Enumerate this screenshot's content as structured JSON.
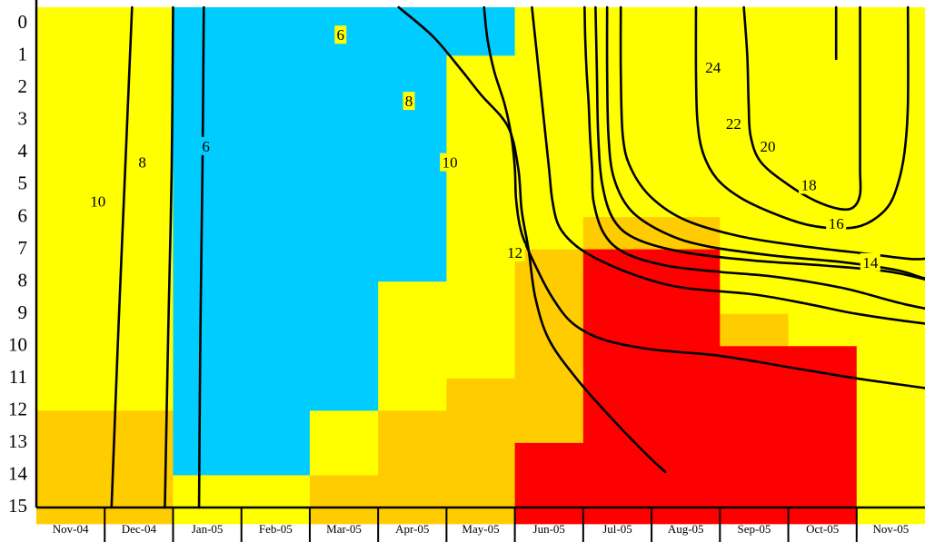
{
  "chart_data": {
    "type": "heatmap",
    "title": "",
    "xlabel": "",
    "ylabel": "",
    "x_categories": [
      "Nov-04",
      "Dec-04",
      "Jan-05",
      "Feb-05",
      "Mar-05",
      "Apr-05",
      "May-05",
      "Jun-05",
      "Jul-05",
      "Aug-05",
      "Sep-05",
      "Oct-05",
      "Nov-05"
    ],
    "y_ticks": [
      "0",
      "1",
      "2",
      "3",
      "4",
      "5",
      "6",
      "7",
      "8",
      "9",
      "10",
      "11",
      "12",
      "13",
      "14",
      "15"
    ],
    "ylim": [
      0,
      15.5
    ],
    "y_direction": "downward",
    "colors": {
      "Y": "#ffff00",
      "B": "#00ccff",
      "O": "#ffcc00",
      "R": "#ff0000"
    },
    "cell_step": 0.5,
    "cells": {
      "Nov-04": [
        "Y",
        25,
        "O",
        7
      ],
      "Dec-04": [
        "Y",
        25,
        "O",
        7
      ],
      "Jan-05": [
        "B",
        29,
        "Y",
        3
      ],
      "Feb-05": [
        "B",
        29,
        "Y",
        3
      ],
      "Mar-05": [
        "B",
        25,
        "Y",
        4,
        "O",
        3
      ],
      "Apr-05": [
        "B",
        17,
        "Y",
        8,
        "O",
        7
      ],
      "May-05": [
        "B",
        3,
        "Y",
        20,
        "O",
        9
      ],
      "Jun-05": [
        "Y",
        15,
        "O",
        12,
        "R",
        5
      ],
      "Jul-05": [
        "Y",
        13,
        "O",
        2,
        "R",
        17
      ],
      "Aug-05": [
        "Y",
        13,
        "O",
        2,
        "R",
        17
      ],
      "Sep-05": [
        "Y",
        19,
        "O",
        2,
        "R",
        11
      ],
      "Oct-05": [
        "Y",
        21,
        "R",
        11
      ],
      "Nov-05": [
        "Y",
        32
      ]
    },
    "contours": [
      {
        "level": 10,
        "points": [
          [
            1.4,
            0
          ],
          [
            1.3,
            5
          ],
          [
            1.2,
            10
          ],
          [
            1.1,
            15.5
          ]
        ]
      },
      {
        "level": 8,
        "points": [
          [
            2.0,
            0
          ],
          [
            1.98,
            5
          ],
          [
            1.93,
            10
          ],
          [
            1.88,
            15.5
          ]
        ]
      },
      {
        "level": 6,
        "points": [
          [
            2.45,
            0
          ],
          [
            2.43,
            5
          ],
          [
            2.4,
            10
          ],
          [
            2.38,
            15.5
          ]
        ]
      },
      {
        "level": 6,
        "points": [
          [
            5.3,
            0
          ],
          [
            5.8,
            0.9
          ],
          [
            6.2,
            1.9
          ],
          [
            6.5,
            2.7
          ],
          [
            6.9,
            3.7
          ],
          [
            7.05,
            5
          ],
          [
            7.1,
            6.3
          ],
          [
            7.2,
            7.5
          ],
          [
            7.3,
            9
          ],
          [
            7.5,
            10.3
          ],
          [
            7.9,
            11.5
          ],
          [
            8.4,
            12.7
          ],
          [
            8.9,
            13.8
          ],
          [
            9.2,
            14.4
          ]
        ]
      },
      {
        "level": 8,
        "points": [
          [
            6.55,
            0
          ],
          [
            6.6,
            1
          ],
          [
            6.7,
            2
          ],
          [
            6.85,
            3
          ],
          [
            6.95,
            4
          ],
          [
            7.0,
            5
          ],
          [
            7.02,
            6
          ],
          [
            7.1,
            7
          ],
          [
            7.3,
            8
          ],
          [
            7.55,
            9
          ],
          [
            7.85,
            9.8
          ],
          [
            8.3,
            10.3
          ],
          [
            9.0,
            10.6
          ],
          [
            10.0,
            10.8
          ],
          [
            11.0,
            11.15
          ],
          [
            12.0,
            11.5
          ],
          [
            13.0,
            11.8
          ],
          [
            13.6,
            12.0
          ],
          [
            14.0,
            12.3
          ],
          [
            14.3,
            13.0
          ],
          [
            14.5,
            13.8
          ],
          [
            14.6,
            14.4
          ]
        ]
      },
      {
        "level": 10,
        "points": [
          [
            7.25,
            0
          ],
          [
            7.3,
            1
          ],
          [
            7.35,
            2
          ],
          [
            7.4,
            3
          ],
          [
            7.45,
            4
          ],
          [
            7.5,
            5
          ],
          [
            7.55,
            6
          ],
          [
            7.65,
            6.8
          ],
          [
            7.9,
            7.4
          ],
          [
            8.3,
            7.9
          ],
          [
            8.9,
            8.4
          ],
          [
            9.5,
            8.7
          ],
          [
            10.5,
            8.9
          ],
          [
            11.3,
            9.2
          ],
          [
            12.0,
            9.5
          ],
          [
            13.0,
            9.8
          ],
          [
            14.0,
            10.0
          ],
          [
            14.8,
            10.0
          ],
          [
            15.3,
            9.9
          ],
          [
            15.55,
            9.5
          ],
          [
            15.6,
            9.0
          ],
          [
            15.6,
            7.0
          ],
          [
            15.6,
            4.0
          ],
          [
            15.6,
            0
          ]
        ]
      },
      {
        "level": 12,
        "points": [
          [
            8.02,
            0
          ],
          [
            8.03,
            1
          ],
          [
            8.05,
            2
          ],
          [
            8.08,
            3
          ],
          [
            8.1,
            4
          ],
          [
            8.13,
            5
          ],
          [
            8.15,
            6
          ],
          [
            8.3,
            7
          ],
          [
            8.6,
            7.6
          ],
          [
            9.2,
            8.0
          ],
          [
            10.0,
            8.2
          ],
          [
            10.8,
            8.35
          ],
          [
            11.8,
            8.7
          ],
          [
            12.7,
            9.2
          ],
          [
            13.5,
            9.5
          ],
          [
            14.1,
            9.55
          ],
          [
            14.4,
            9.4
          ],
          [
            14.55,
            9.0
          ],
          [
            14.6,
            8.0
          ],
          [
            14.6,
            4.0
          ],
          [
            14.6,
            0
          ]
        ]
      },
      {
        "level": 14,
        "points": [
          [
            8.18,
            0
          ],
          [
            8.2,
            2
          ],
          [
            8.22,
            4
          ],
          [
            8.28,
            5.5
          ],
          [
            8.45,
            6.6
          ],
          [
            8.8,
            7.2
          ],
          [
            9.5,
            7.6
          ],
          [
            10.5,
            7.85
          ],
          [
            11.5,
            8.0
          ],
          [
            12.5,
            8.2
          ],
          [
            13.3,
            8.6
          ],
          [
            13.9,
            8.95
          ],
          [
            14.3,
            9.05
          ],
          [
            14.5,
            8.8
          ],
          [
            14.55,
            8.0
          ],
          [
            14.56,
            4.0
          ],
          [
            14.56,
            0
          ]
        ]
      },
      {
        "level": 16,
        "points": [
          [
            8.35,
            0
          ],
          [
            8.35,
            2
          ],
          [
            8.37,
            4
          ],
          [
            8.45,
            5.3
          ],
          [
            8.7,
            6.3
          ],
          [
            9.2,
            7.0
          ],
          [
            9.8,
            7.4
          ],
          [
            10.8,
            7.7
          ],
          [
            11.8,
            7.9
          ],
          [
            12.6,
            8.15
          ],
          [
            13.0,
            8.4
          ],
          [
            13.3,
            8.45
          ],
          [
            13.55,
            8.2
          ],
          [
            13.7,
            7.6
          ],
          [
            13.8,
            7.0
          ],
          [
            14.0,
            4.0
          ],
          [
            14.15,
            0
          ]
        ]
      },
      {
        "level": 18,
        "points": [
          [
            8.55,
            0
          ],
          [
            8.55,
            2
          ],
          [
            8.58,
            4
          ],
          [
            8.7,
            5.0
          ],
          [
            9.0,
            5.9
          ],
          [
            9.5,
            6.6
          ],
          [
            10.3,
            7.1
          ],
          [
            11.2,
            7.4
          ],
          [
            12.2,
            7.65
          ],
          [
            12.8,
            7.8
          ],
          [
            13.1,
            7.75
          ],
          [
            13.35,
            7.55
          ],
          [
            13.45,
            7.1
          ],
          [
            13.5,
            6.0
          ],
          [
            13.45,
            3.0
          ],
          [
            13.4,
            0
          ]
        ]
      },
      {
        "level": 20,
        "points": [
          [
            9.65,
            0
          ],
          [
            9.65,
            2
          ],
          [
            9.67,
            3.5
          ],
          [
            9.75,
            4.5
          ],
          [
            9.95,
            5.3
          ],
          [
            10.3,
            5.9
          ],
          [
            10.8,
            6.4
          ],
          [
            11.3,
            6.75
          ],
          [
            11.8,
            6.85
          ],
          [
            12.15,
            6.7
          ],
          [
            12.45,
            6.2
          ],
          [
            12.6,
            5.5
          ],
          [
            12.7,
            4.5
          ],
          [
            12.75,
            3.0
          ],
          [
            12.75,
            0
          ]
        ]
      },
      {
        "level": 22,
        "points": [
          [
            10.35,
            0
          ],
          [
            10.4,
            1.5
          ],
          [
            10.42,
            3
          ],
          [
            10.45,
            4
          ],
          [
            10.6,
            4.8
          ],
          [
            11.0,
            5.5
          ],
          [
            11.4,
            6.0
          ],
          [
            11.75,
            6.25
          ],
          [
            11.95,
            6.2
          ],
          [
            12.05,
            5.8
          ],
          [
            12.05,
            5.0
          ],
          [
            12.05,
            3.5
          ],
          [
            12.05,
            1.5
          ],
          [
            12.05,
            0
          ]
        ]
      },
      {
        "level": 24,
        "points": [
          [
            11.7,
            0
          ],
          [
            11.7,
            1.6
          ]
        ]
      }
    ],
    "contour_labels": [
      {
        "text": "10",
        "x": 0.9,
        "y": 6.0
      },
      {
        "text": "8",
        "x": 1.55,
        "y": 4.8
      },
      {
        "text": "6",
        "x": 2.48,
        "y": 4.3,
        "bg": "#00ccff"
      },
      {
        "text": "6",
        "x": 4.45,
        "y": 0.85
      },
      {
        "text": "8",
        "x": 5.45,
        "y": 2.9
      },
      {
        "text": "10",
        "x": 6.05,
        "y": 4.8
      },
      {
        "text": "12",
        "x": 7.0,
        "y": 7.6
      },
      {
        "text": "24",
        "x": 9.9,
        "y": 1.85
      },
      {
        "text": "22",
        "x": 10.2,
        "y": 3.6
      },
      {
        "text": "20",
        "x": 10.7,
        "y": 4.3
      },
      {
        "text": "18",
        "x": 11.3,
        "y": 5.5
      },
      {
        "text": "16",
        "x": 11.7,
        "y": 6.7
      },
      {
        "text": "14",
        "x": 12.2,
        "y": 7.9
      }
    ]
  }
}
